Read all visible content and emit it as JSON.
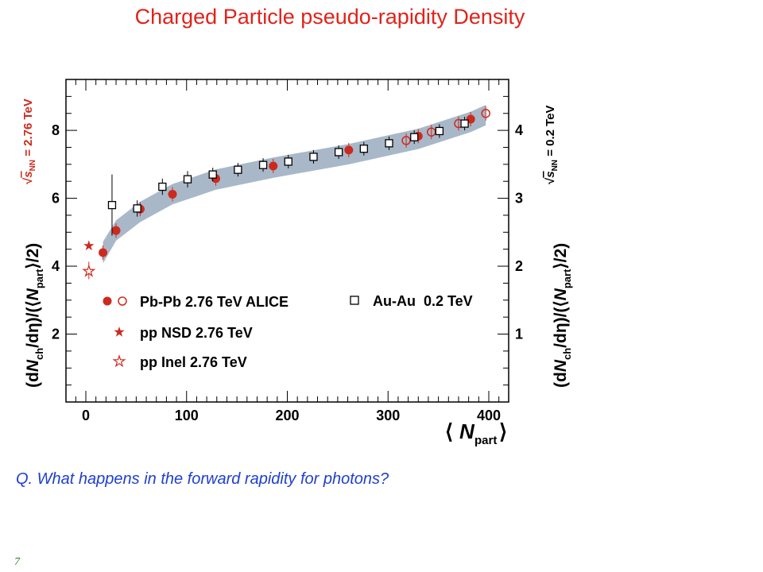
{
  "slide": {
    "title": "Charged Particle pseudo-rapidity Density",
    "question": "Q. What happens in the forward rapidity for photons?",
    "page_number": "7"
  },
  "colors": {
    "title": "#e0231a",
    "question": "#1f3fd0",
    "alice": "#cc2a1e",
    "band": "#a9b8c8",
    "page_number": "#2e7d2e"
  },
  "chart_data": {
    "type": "scatter",
    "xlabel": "⟨ N_part ⟩",
    "ylabel_left": "(dN_ch/dη)/(⟨N_part⟩/2)",
    "ylabel_right": "(dN_ch/dη)/(⟨N_part⟩/2)",
    "energy_left": "√s_NN = 2.76 TeV",
    "energy_right": "√s_NN = 0.2 TeV",
    "xlim": [
      -20,
      420
    ],
    "ylim_left": [
      0,
      9.5
    ],
    "ylim_right": [
      0,
      4.75
    ],
    "xticks": [
      "0",
      "100",
      "200",
      "300",
      "400"
    ],
    "yticks_left": [
      "2",
      "4",
      "6",
      "8"
    ],
    "yticks_right": [
      "1",
      "2",
      "3",
      "4"
    ],
    "legend": [
      {
        "label": "Pb-Pb 2.76 TeV ALICE",
        "marker": "circle-filled+open"
      },
      {
        "label": "pp NSD 2.76 TeV",
        "marker": "star-filled"
      },
      {
        "label": "pp Inel 2.76 TeV",
        "marker": "star-open"
      },
      {
        "label": "Au-Au  0.2 TeV",
        "marker": "square-open"
      }
    ],
    "series": [
      {
        "name": "Pb-Pb 2.76 TeV ALICE",
        "marker": "circle-filled",
        "x": [
          17,
          30,
          54,
          86,
          129,
          186,
          261,
          330,
          382
        ],
        "y": [
          4.4,
          5.05,
          5.68,
          6.12,
          6.58,
          6.95,
          7.42,
          7.83,
          8.33
        ]
      },
      {
        "name": "Pb-Pb 2.76 TeV ALICE",
        "marker": "circle-open",
        "x": [
          318,
          343,
          370,
          397
        ],
        "y": [
          7.7,
          7.95,
          8.2,
          8.5
        ]
      },
      {
        "name": "pp NSD 2.76 TeV",
        "marker": "star-filled",
        "x": [
          3
        ],
        "y": [
          4.6
        ]
      },
      {
        "name": "pp Inel 2.76 TeV",
        "marker": "star-open",
        "x": [
          3
        ],
        "y": [
          3.85
        ]
      },
      {
        "name": "Au-Au  0.2 TeV",
        "marker": "square-open",
        "x": [
          26,
          51,
          76,
          101,
          126,
          151,
          176,
          201,
          226,
          251,
          276,
          301,
          326,
          351,
          376
        ],
        "y_right": [
          2.9,
          2.85,
          3.17,
          3.28,
          3.35,
          3.42,
          3.49,
          3.54,
          3.61,
          3.68,
          3.73,
          3.81,
          3.9,
          3.99,
          4.1
        ],
        "yerr_right": [
          0.45,
          0.12,
          0.12,
          0.12,
          0.1,
          0.1,
          0.1,
          0.1,
          0.1,
          0.1,
          0.1,
          0.1,
          0.1,
          0.1,
          0.1
        ]
      }
    ],
    "band": {
      "x": [
        17,
        30,
        54,
        86,
        129,
        186,
        261,
        330,
        382,
        397
      ],
      "y": [
        4.4,
        5.05,
        5.6,
        6.12,
        6.55,
        6.9,
        7.3,
        7.75,
        8.25,
        8.45
      ],
      "halfwidth": [
        0.32,
        0.3,
        0.3,
        0.3,
        0.3,
        0.3,
        0.3,
        0.3,
        0.3,
        0.3
      ]
    }
  }
}
